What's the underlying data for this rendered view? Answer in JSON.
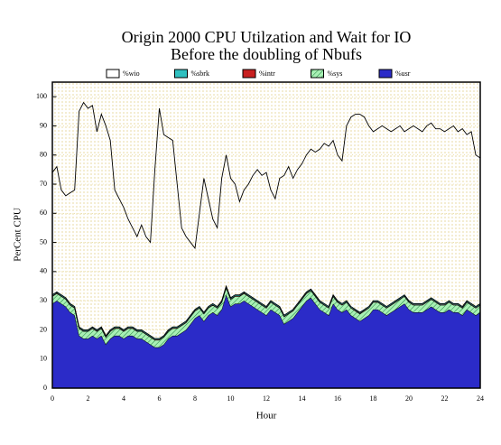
{
  "chart_data": {
    "type": "stacked_area",
    "title": "Origin 2000 CPU Utilzation and Wait for IO",
    "subtitle": "Before the doubling of Nbufs",
    "xlabel": "Hour",
    "ylabel": "PerCent CPU",
    "xlim": [
      0,
      24
    ],
    "xticks": [
      0,
      2,
      4,
      6,
      8,
      10,
      12,
      14,
      16,
      18,
      20,
      22,
      24
    ],
    "ylim": [
      0,
      105
    ],
    "yticks": [
      0,
      10,
      20,
      30,
      40,
      50,
      60,
      70,
      80,
      90,
      100
    ],
    "grid": true,
    "x": [
      0,
      0.25,
      0.5,
      0.75,
      1,
      1.25,
      1.5,
      1.75,
      2,
      2.25,
      2.5,
      2.75,
      3,
      3.25,
      3.5,
      3.75,
      4,
      4.25,
      4.5,
      4.75,
      5,
      5.25,
      5.5,
      5.75,
      6,
      6.25,
      6.5,
      6.75,
      7,
      7.25,
      7.5,
      7.75,
      8,
      8.25,
      8.5,
      8.75,
      9,
      9.25,
      9.5,
      9.75,
      10,
      10.25,
      10.5,
      10.75,
      11,
      11.25,
      11.5,
      11.75,
      12,
      12.25,
      12.5,
      12.75,
      13,
      13.25,
      13.5,
      13.75,
      14,
      14.25,
      14.5,
      14.75,
      15,
      15.25,
      15.5,
      15.75,
      16,
      16.25,
      16.5,
      16.75,
      17,
      17.25,
      17.5,
      17.75,
      18,
      18.25,
      18.5,
      18.75,
      19,
      19.25,
      19.5,
      19.75,
      20,
      20.25,
      20.5,
      20.75,
      21,
      21.25,
      21.5,
      21.75,
      22,
      22.25,
      22.5,
      22.75,
      23,
      23.25,
      23.5,
      23.75,
      24
    ],
    "series": [
      {
        "name": "%wio",
        "color": "#ffffff",
        "values": [
          42,
          43,
          36,
          35,
          38,
          40,
          74,
          78,
          76,
          76,
          68,
          73,
          72,
          65,
          47,
          44,
          42,
          37,
          34,
          32,
          36,
          33,
          32,
          58,
          79,
          69,
          66,
          64,
          49,
          33,
          29,
          25,
          21,
          32,
          46,
          37,
          29,
          27,
          42,
          45,
          41,
          38,
          32,
          35,
          38,
          42,
          45,
          44,
          46,
          38,
          36,
          44,
          48,
          50,
          45,
          46,
          46,
          47,
          48,
          49,
          52,
          55,
          55,
          53,
          50,
          49,
          60,
          65,
          67,
          68,
          66,
          62,
          58,
          59,
          61,
          61,
          59,
          59,
          59,
          56,
          59,
          61,
          60,
          59,
          60,
          60,
          59,
          60,
          59,
          59,
          61,
          59,
          61,
          57,
          59,
          52,
          50
        ]
      },
      {
        "name": "%sbrk",
        "color": "#30c0c0",
        "values": [
          0.3,
          0.3,
          0.3,
          0.3,
          0.3,
          0.3,
          0.3,
          0.3,
          0.3,
          0.3,
          0.3,
          0.3,
          0.3,
          0.3,
          0.3,
          0.3,
          0.3,
          0.3,
          0.3,
          0.3,
          0.3,
          0.3,
          0.3,
          0.3,
          0.3,
          0.3,
          0.3,
          0.3,
          0.3,
          0.3,
          0.3,
          0.3,
          0.3,
          0.3,
          0.3,
          0.3,
          0.3,
          0.3,
          0.3,
          0.3,
          0.3,
          0.3,
          0.3,
          0.3,
          0.3,
          0.3,
          0.3,
          0.3,
          0.3,
          0.3,
          0.3,
          0.3,
          0.3,
          0.3,
          0.3,
          0.3,
          0.3,
          0.3,
          0.3,
          0.3,
          0.3,
          0.3,
          0.3,
          0.3,
          0.3,
          0.3,
          0.3,
          0.3,
          0.3,
          0.3,
          0.3,
          0.3,
          0.3,
          0.3,
          0.3,
          0.3,
          0.3,
          0.3,
          0.3,
          0.3,
          0.3,
          0.3,
          0.3,
          0.3,
          0.3,
          0.3,
          0.3,
          0.3,
          0.3,
          0.3,
          0.3,
          0.3,
          0.3,
          0.3,
          0.3,
          0.3,
          0.3
        ]
      },
      {
        "name": "%intr",
        "color": "#c82020",
        "values": [
          0.2,
          0.2,
          0.2,
          0.2,
          0.2,
          0.2,
          0.2,
          0.2,
          0.2,
          0.2,
          0.2,
          0.2,
          0.2,
          0.2,
          0.2,
          0.2,
          0.2,
          0.2,
          0.2,
          0.2,
          0.2,
          0.2,
          0.2,
          0.2,
          0.2,
          0.2,
          0.2,
          0.2,
          0.2,
          0.2,
          0.2,
          0.2,
          0.2,
          0.2,
          0.2,
          0.2,
          0.2,
          0.2,
          0.2,
          0.2,
          0.2,
          0.2,
          0.2,
          0.2,
          0.2,
          0.2,
          0.2,
          0.2,
          0.2,
          0.2,
          0.2,
          0.2,
          0.2,
          0.2,
          0.2,
          0.2,
          0.2,
          0.2,
          0.2,
          0.2,
          0.2,
          0.2,
          0.2,
          0.2,
          0.2,
          0.2,
          0.2,
          0.2,
          0.2,
          0.2,
          0.2,
          0.2,
          0.2,
          0.2,
          0.2,
          0.2,
          0.2,
          0.2,
          0.2,
          0.2,
          0.2,
          0.2,
          0.2,
          0.2,
          0.2,
          0.2,
          0.2,
          0.2,
          0.2,
          0.2,
          0.2,
          0.2,
          0.2,
          0.2,
          0.2,
          0.2,
          0.2
        ]
      },
      {
        "name": "%sys",
        "color": "#a8f0b4",
        "values": [
          2.5,
          2.5,
          2.5,
          2.5,
          2.5,
          2.5,
          2.5,
          2.5,
          2.5,
          2.5,
          2.5,
          2.5,
          2.5,
          2.5,
          2.5,
          2.5,
          2.5,
          2.5,
          2.5,
          2.5,
          2.5,
          2.5,
          2.5,
          2.5,
          2.5,
          2.5,
          2.5,
          2.5,
          2.5,
          2.5,
          2.5,
          2.5,
          2.5,
          2.5,
          2.5,
          2.5,
          2.5,
          2.5,
          2.5,
          2.5,
          2.5,
          2.5,
          2.5,
          2.5,
          2.5,
          2.5,
          2.5,
          2.5,
          2.5,
          2.5,
          2.5,
          2.5,
          2.5,
          2.5,
          2.5,
          2.5,
          2.5,
          2.5,
          2.5,
          2.5,
          2.5,
          2.5,
          2.5,
          2.5,
          2.5,
          2.5,
          2.5,
          2.5,
          2.5,
          2.5,
          2.5,
          2.5,
          2.5,
          2.5,
          2.5,
          2.5,
          2.5,
          2.5,
          2.5,
          2.5,
          2.5,
          2.5,
          2.5,
          2.5,
          2.5,
          2.5,
          2.5,
          2.5,
          2.5,
          2.5,
          2.5,
          2.5,
          2.5,
          2.5,
          2.5,
          2.5,
          2.5
        ]
      },
      {
        "name": "%usr",
        "color": "#2b2bc8",
        "values": [
          29,
          30,
          29,
          28,
          26,
          25,
          18,
          17,
          17,
          18,
          17,
          18,
          15,
          17,
          18,
          18,
          17,
          18,
          18,
          17,
          17,
          16,
          15,
          14,
          14,
          15,
          17,
          18,
          18,
          19,
          20,
          22,
          24,
          25,
          23,
          25,
          26,
          25,
          27,
          32,
          28,
          29,
          29,
          30,
          29,
          28,
          27,
          26,
          25,
          27,
          26,
          25,
          22,
          23,
          24,
          26,
          28,
          30,
          31,
          29,
          27,
          26,
          25,
          29,
          27,
          26,
          27,
          25,
          24,
          23,
          24,
          25,
          27,
          27,
          26,
          25,
          26,
          27,
          28,
          29,
          27,
          26,
          26,
          26,
          27,
          28,
          27,
          26,
          26,
          27,
          26,
          26,
          25,
          27,
          26,
          25,
          26
        ]
      }
    ]
  }
}
